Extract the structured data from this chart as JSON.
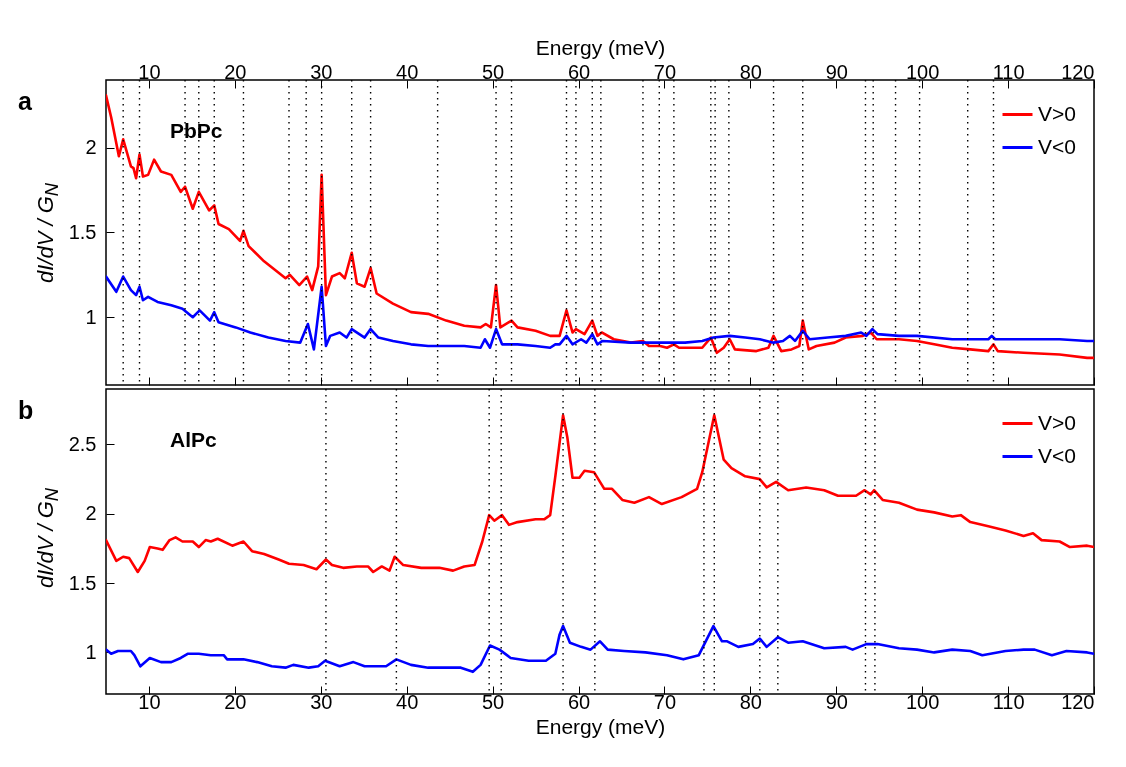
{
  "chart_data": [
    {
      "type": "line",
      "annotations": [
        "a",
        "PbPc"
      ],
      "ylabel": "dI/dV / G$_{N}$",
      "x2label": "Energy (meV)",
      "xlim": [
        5,
        120
      ],
      "xticks": [
        10,
        20,
        30,
        40,
        50,
        60,
        70,
        80,
        90,
        100,
        110,
        120
      ],
      "x2lim": [
        5,
        120
      ],
      "x2ticks": [
        10,
        20,
        30,
        40,
        50,
        60,
        70,
        80,
        90,
        100,
        110,
        120
      ],
      "ylim": [
        0.6,
        2.4
      ],
      "yticks": [
        1,
        1.5,
        2
      ],
      "tick_labels": "y",
      "legend": "top right",
      "line_style": "solid",
      "series": [
        {
          "name": "V>0",
          "color": "#ff0000",
          "x": [
            5,
            5.6,
            6.5,
            7.0,
            7.9,
            8.2,
            8.5,
            8.9,
            9.3,
            9.9,
            10.6,
            11.4,
            12.6,
            13.7,
            14.2,
            15.1,
            15.8,
            17.0,
            17.6,
            18.1,
            19.3,
            20.6,
            21.0,
            21.6,
            23.4,
            25.9,
            26.4,
            27.5,
            28.4,
            29.0,
            29.7,
            30.1,
            30.6,
            31.3,
            32.2,
            32.8,
            33.6,
            34.2,
            35.1,
            35.8,
            36.5,
            38.4,
            40.5,
            42.5,
            44.6,
            46.7,
            48.6,
            49.2,
            49.8,
            50.4,
            50.9,
            52.2,
            52.9,
            55.0,
            56.7,
            57.8,
            58.6,
            59.3,
            59.7,
            60.7,
            61.6,
            62.2,
            62.7,
            64.1,
            66.1,
            67.5,
            68.2,
            69.5,
            70.3,
            71.1,
            71.7,
            74.4,
            75.4,
            76.1,
            76.9,
            77.6,
            78.2,
            80.7,
            82.1,
            82.7,
            83.6,
            84.8,
            85.7,
            86.1,
            86.8,
            87.7,
            89.8,
            91.1,
            93.1,
            94.0,
            94.7,
            97.3,
            99.4,
            101.4,
            103.5,
            105.6,
            107.7,
            108.3,
            108.8,
            111.8,
            116.0,
            119.2,
            120
          ],
          "values": [
            2.31,
            2.18,
            1.95,
            2.05,
            1.89,
            1.88,
            1.82,
            1.96,
            1.83,
            1.84,
            1.93,
            1.86,
            1.84,
            1.74,
            1.77,
            1.64,
            1.74,
            1.63,
            1.66,
            1.55,
            1.52,
            1.45,
            1.51,
            1.42,
            1.33,
            1.23,
            1.25,
            1.19,
            1.24,
            1.16,
            1.3,
            1.84,
            1.13,
            1.24,
            1.26,
            1.23,
            1.38,
            1.2,
            1.18,
            1.29,
            1.14,
            1.08,
            1.03,
            1.02,
            0.98,
            0.95,
            0.94,
            0.96,
            0.94,
            1.19,
            0.94,
            0.98,
            0.94,
            0.92,
            0.89,
            0.89,
            1.04,
            0.91,
            0.93,
            0.9,
            0.98,
            0.89,
            0.91,
            0.87,
            0.85,
            0.86,
            0.83,
            0.83,
            0.82,
            0.84,
            0.82,
            0.82,
            0.88,
            0.79,
            0.82,
            0.87,
            0.81,
            0.8,
            0.82,
            0.89,
            0.8,
            0.81,
            0.83,
            0.98,
            0.81,
            0.83,
            0.85,
            0.88,
            0.89,
            0.91,
            0.87,
            0.87,
            0.86,
            0.84,
            0.82,
            0.81,
            0.8,
            0.84,
            0.8,
            0.79,
            0.78,
            0.76,
            0.76
          ]
        },
        {
          "name": "V<0",
          "color": "#0000ff",
          "x": [
            5,
            6.2,
            7.0,
            7.9,
            8.5,
            8.9,
            9.3,
            9.9,
            11.0,
            12.6,
            13.9,
            15.1,
            15.9,
            17.1,
            17.6,
            18.1,
            20.1,
            21.8,
            23.9,
            25.9,
            27.6,
            28.5,
            29.2,
            30.1,
            30.6,
            31.1,
            32.2,
            33.0,
            33.6,
            35.1,
            35.8,
            36.7,
            38.4,
            40.5,
            42.5,
            44.6,
            46.7,
            48.6,
            49.1,
            49.7,
            50.4,
            51.1,
            52.9,
            55.0,
            56.7,
            57.3,
            57.8,
            58.6,
            59.3,
            60.3,
            60.9,
            61.6,
            62.2,
            62.8,
            66.1,
            69.5,
            72.4,
            74.4,
            75.7,
            77.6,
            79.4,
            81.1,
            81.9,
            82.7,
            83.8,
            84.6,
            85.2,
            86.1,
            86.9,
            89.0,
            91.1,
            92.9,
            93.5,
            94.2,
            94.8,
            97.3,
            99.4,
            103.5,
            107.7,
            108.1,
            108.5,
            111.8,
            116.0,
            119.2,
            120
          ],
          "values": [
            1.24,
            1.15,
            1.24,
            1.16,
            1.13,
            1.18,
            1.1,
            1.12,
            1.09,
            1.07,
            1.05,
            1.0,
            1.04,
            0.98,
            1.03,
            0.97,
            0.94,
            0.91,
            0.88,
            0.86,
            0.85,
            0.96,
            0.81,
            1.18,
            0.83,
            0.89,
            0.91,
            0.88,
            0.93,
            0.88,
            0.93,
            0.88,
            0.86,
            0.84,
            0.83,
            0.83,
            0.83,
            0.82,
            0.87,
            0.82,
            0.93,
            0.84,
            0.84,
            0.83,
            0.82,
            0.84,
            0.84,
            0.89,
            0.84,
            0.87,
            0.85,
            0.9,
            0.84,
            0.86,
            0.85,
            0.85,
            0.85,
            0.86,
            0.88,
            0.89,
            0.88,
            0.87,
            0.86,
            0.85,
            0.86,
            0.89,
            0.86,
            0.92,
            0.87,
            0.88,
            0.89,
            0.91,
            0.89,
            0.93,
            0.9,
            0.89,
            0.89,
            0.87,
            0.87,
            0.89,
            0.87,
            0.87,
            0.87,
            0.86,
            0.86
          ]
        }
      ],
      "ref_lines": [
        {
          "axis": "x",
          "value": 7.0,
          "color": "#000000",
          "line_style": "dotted"
        },
        {
          "axis": "x",
          "value": 8.9,
          "color": "#000000",
          "line_style": "dotted"
        },
        {
          "axis": "x",
          "value": 14.2,
          "color": "#000000",
          "line_style": "dotted"
        },
        {
          "axis": "x",
          "value": 15.8,
          "color": "#000000",
          "line_style": "dotted"
        },
        {
          "axis": "x",
          "value": 17.6,
          "color": "#000000",
          "line_style": "dotted"
        },
        {
          "axis": "x",
          "value": 21.0,
          "color": "#000000",
          "line_style": "dotted"
        },
        {
          "axis": "x",
          "value": 26.3,
          "color": "#000000",
          "line_style": "dotted"
        },
        {
          "axis": "x",
          "value": 28.3,
          "color": "#000000",
          "line_style": "dotted"
        },
        {
          "axis": "x",
          "value": 30.1,
          "color": "#000000",
          "line_style": "dotted"
        },
        {
          "axis": "x",
          "value": 33.6,
          "color": "#000000",
          "line_style": "dotted"
        },
        {
          "axis": "x",
          "value": 35.8,
          "color": "#000000",
          "line_style": "dotted"
        },
        {
          "axis": "x",
          "value": 43.6,
          "color": "#000000",
          "line_style": "dotted"
        },
        {
          "axis": "x",
          "value": 50.4,
          "color": "#000000",
          "line_style": "dotted"
        },
        {
          "axis": "x",
          "value": 52.2,
          "color": "#000000",
          "line_style": "dotted"
        },
        {
          "axis": "x",
          "value": 58.6,
          "color": "#000000",
          "line_style": "dotted"
        },
        {
          "axis": "x",
          "value": 59.7,
          "color": "#000000",
          "line_style": "dotted"
        },
        {
          "axis": "x",
          "value": 61.6,
          "color": "#000000",
          "line_style": "dotted"
        },
        {
          "axis": "x",
          "value": 62.6,
          "color": "#000000",
          "line_style": "dotted"
        },
        {
          "axis": "x",
          "value": 67.5,
          "color": "#000000",
          "line_style": "dotted"
        },
        {
          "axis": "x",
          "value": 69.4,
          "color": "#000000",
          "line_style": "dotted"
        },
        {
          "axis": "x",
          "value": 71.1,
          "color": "#000000",
          "line_style": "dotted"
        },
        {
          "axis": "x",
          "value": 75.4,
          "color": "#000000",
          "line_style": "dotted"
        },
        {
          "axis": "x",
          "value": 75.9,
          "color": "#000000",
          "line_style": "dotted"
        },
        {
          "axis": "x",
          "value": 77.5,
          "color": "#000000",
          "line_style": "dotted"
        },
        {
          "axis": "x",
          "value": 82.7,
          "color": "#000000",
          "line_style": "dotted"
        },
        {
          "axis": "x",
          "value": 86.1,
          "color": "#000000",
          "line_style": "dotted"
        },
        {
          "axis": "x",
          "value": 93.4,
          "color": "#000000",
          "line_style": "dotted"
        },
        {
          "axis": "x",
          "value": 94.3,
          "color": "#000000",
          "line_style": "dotted"
        },
        {
          "axis": "x",
          "value": 96.9,
          "color": "#000000",
          "line_style": "dotted"
        },
        {
          "axis": "x",
          "value": 99.7,
          "color": "#000000",
          "line_style": "dotted"
        },
        {
          "axis": "x",
          "value": 105.3,
          "color": "#000000",
          "line_style": "dotted"
        },
        {
          "axis": "x",
          "value": 108.3,
          "color": "#000000",
          "line_style": "dotted"
        }
      ]
    },
    {
      "type": "line",
      "annotations": [
        "b",
        "AlPc"
      ],
      "xlabel": "Energy (meV)",
      "ylabel": "dI/dV / G$_{N}$",
      "xlim": [
        5,
        120
      ],
      "xticks": [
        10,
        20,
        30,
        40,
        50,
        60,
        70,
        80,
        90,
        100,
        110,
        120
      ],
      "ylim": [
        0.7,
        2.9
      ],
      "yticks": [
        1,
        1.5,
        2,
        2.5
      ],
      "legend": "top right",
      "line_style": "solid",
      "series": [
        {
          "name": "V>0",
          "color": "#ff0000",
          "x": [
            5,
            6.2,
            7.0,
            7.7,
            8.7,
            9.5,
            10.1,
            11.0,
            11.6,
            12.4,
            13.1,
            13.9,
            15.1,
            15.8,
            16.6,
            17.2,
            18.0,
            19.7,
            21.0,
            22.0,
            23.4,
            25.1,
            26.3,
            28.0,
            29.5,
            30.6,
            31.3,
            32.6,
            34.2,
            35.5,
            36.1,
            37.1,
            38.0,
            38.6,
            39.6,
            41.7,
            43.8,
            45.4,
            46.7,
            47.9,
            48.8,
            49.6,
            50.2,
            51.1,
            51.9,
            52.9,
            55.0,
            56.0,
            56.7,
            57.3,
            58.2,
            58.7,
            59.3,
            60.1,
            60.7,
            61.8,
            63.0,
            63.9,
            65.1,
            66.5,
            68.2,
            69.7,
            72.0,
            73.8,
            74.4,
            75.8,
            76.9,
            77.8,
            79.4,
            81.1,
            81.9,
            83.0,
            84.4,
            86.5,
            88.6,
            90.2,
            92.3,
            93.3,
            94.0,
            94.4,
            95.4,
            97.3,
            99.4,
            101.4,
            103.5,
            104.5,
            105.6,
            107.7,
            109.7,
            111.8,
            112.9,
            113.9,
            116.0,
            117.2,
            119.2,
            120
          ],
          "values": [
            1.81,
            1.66,
            1.69,
            1.68,
            1.58,
            1.66,
            1.76,
            1.75,
            1.74,
            1.81,
            1.83,
            1.8,
            1.8,
            1.76,
            1.81,
            1.8,
            1.82,
            1.77,
            1.8,
            1.73,
            1.71,
            1.67,
            1.64,
            1.63,
            1.6,
            1.67,
            1.63,
            1.61,
            1.62,
            1.62,
            1.58,
            1.62,
            1.59,
            1.69,
            1.63,
            1.61,
            1.61,
            1.59,
            1.62,
            1.63,
            1.8,
            1.99,
            1.95,
            1.99,
            1.92,
            1.94,
            1.96,
            1.96,
            1.99,
            2.27,
            2.71,
            2.55,
            2.26,
            2.26,
            2.31,
            2.3,
            2.18,
            2.18,
            2.1,
            2.08,
            2.12,
            2.07,
            2.12,
            2.18,
            2.3,
            2.71,
            2.39,
            2.33,
            2.27,
            2.25,
            2.19,
            2.23,
            2.17,
            2.19,
            2.17,
            2.13,
            2.13,
            2.17,
            2.14,
            2.17,
            2.1,
            2.08,
            2.03,
            2.01,
            1.98,
            1.99,
            1.94,
            1.91,
            1.88,
            1.84,
            1.86,
            1.81,
            1.8,
            1.76,
            1.77,
            1.76
          ]
        },
        {
          "name": "V<0",
          "color": "#0000ff",
          "x": [
            5,
            5.6,
            6.4,
            7.9,
            8.3,
            9.0,
            10.1,
            11.4,
            12.6,
            13.7,
            14.5,
            15.8,
            17.2,
            18.7,
            19.1,
            21.0,
            22.6,
            24.3,
            25.9,
            26.8,
            28.6,
            29.7,
            30.5,
            32.2,
            33.8,
            35.1,
            37.6,
            38.8,
            40.5,
            42.5,
            44.2,
            46.3,
            47.7,
            48.6,
            49.7,
            50.8,
            52.1,
            54.2,
            56.2,
            57.3,
            57.8,
            58.2,
            59.0,
            60.3,
            61.4,
            62.5,
            63.4,
            65.3,
            67.8,
            70.3,
            72.2,
            74.0,
            75.7,
            76.7,
            77.3,
            78.6,
            80.3,
            81.1,
            81.9,
            83.2,
            84.4,
            86.1,
            88.6,
            91.1,
            91.9,
            93.5,
            94.8,
            97.3,
            99.4,
            101.4,
            103.5,
            105.6,
            107.0,
            109.7,
            111.8,
            113.1,
            115.1,
            116.8,
            119.2,
            120
          ],
          "values": [
            1.02,
            0.99,
            1.01,
            1.01,
            0.98,
            0.9,
            0.96,
            0.93,
            0.93,
            0.96,
            0.99,
            0.99,
            0.98,
            0.98,
            0.95,
            0.95,
            0.93,
            0.9,
            0.89,
            0.91,
            0.89,
            0.9,
            0.94,
            0.9,
            0.93,
            0.9,
            0.9,
            0.95,
            0.91,
            0.89,
            0.89,
            0.89,
            0.86,
            0.91,
            1.05,
            1.02,
            0.96,
            0.94,
            0.94,
            0.99,
            1.13,
            1.19,
            1.07,
            1.04,
            1.02,
            1.08,
            1.02,
            1.01,
            1.0,
            0.98,
            0.95,
            0.98,
            1.19,
            1.08,
            1.08,
            1.04,
            1.06,
            1.1,
            1.04,
            1.11,
            1.07,
            1.08,
            1.03,
            1.04,
            1.02,
            1.06,
            1.06,
            1.03,
            1.02,
            1.0,
            1.02,
            1.01,
            0.98,
            1.01,
            1.02,
            1.02,
            0.98,
            1.01,
            1.0,
            0.99
          ]
        }
      ],
      "ref_lines": [
        {
          "axis": "x",
          "value": 30.6,
          "color": "#000000",
          "line_style": "dotted"
        },
        {
          "axis": "x",
          "value": 38.8,
          "color": "#000000",
          "line_style": "dotted"
        },
        {
          "axis": "x",
          "value": 49.6,
          "color": "#000000",
          "line_style": "dotted"
        },
        {
          "axis": "x",
          "value": 51.0,
          "color": "#000000",
          "line_style": "dotted"
        },
        {
          "axis": "x",
          "value": 58.2,
          "color": "#000000",
          "line_style": "dotted"
        },
        {
          "axis": "x",
          "value": 61.9,
          "color": "#000000",
          "line_style": "dotted"
        },
        {
          "axis": "x",
          "value": 74.6,
          "color": "#000000",
          "line_style": "dotted"
        },
        {
          "axis": "x",
          "value": 75.8,
          "color": "#000000",
          "line_style": "dotted"
        },
        {
          "axis": "x",
          "value": 81.1,
          "color": "#000000",
          "line_style": "dotted"
        },
        {
          "axis": "x",
          "value": 83.2,
          "color": "#000000",
          "line_style": "dotted"
        },
        {
          "axis": "x",
          "value": 93.4,
          "color": "#000000",
          "line_style": "dotted"
        },
        {
          "axis": "x",
          "value": 94.5,
          "color": "#000000",
          "line_style": "dotted"
        }
      ]
    }
  ]
}
